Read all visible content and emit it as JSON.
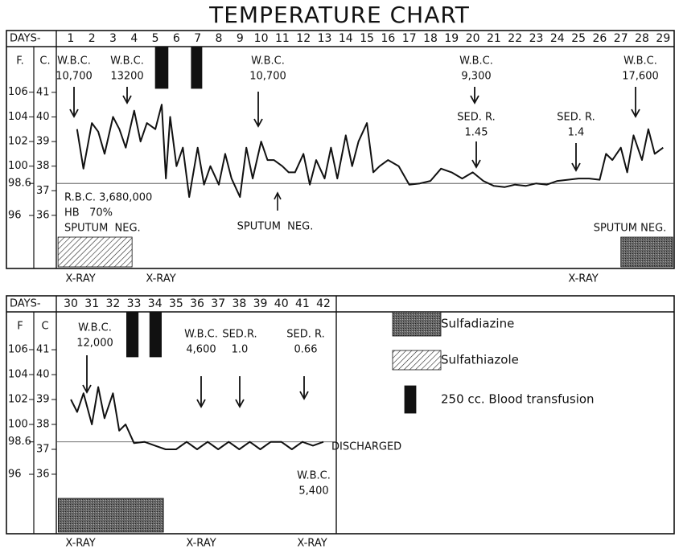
{
  "title": "TEMPERATURE CHART",
  "legend": [
    {
      "label": "Sulfadiazine",
      "pattern": "stipple"
    },
    {
      "label": "Sulfathiazole",
      "pattern": "hatch"
    },
    {
      "label": "250 cc. Blood transfusion",
      "pattern": "solid"
    }
  ],
  "chart_data": [
    {
      "type": "line",
      "x_label": "DAYS-",
      "y_label": "F.",
      "y2_label": "C.",
      "xlim": [
        0.32,
        29.52
      ],
      "xticks": [
        1,
        2,
        3,
        4,
        5,
        6,
        7,
        8,
        9,
        10,
        11,
        12,
        13,
        14,
        15,
        16,
        17,
        18,
        19,
        20,
        21,
        22,
        23,
        24,
        25,
        26,
        27,
        28,
        29
      ],
      "ylim": [
        91.7,
        109.7
      ],
      "yticks": [
        106,
        104,
        102,
        100,
        98.6,
        96
      ],
      "y2lim": [
        33.84,
        42.86
      ],
      "y2ticks": [
        41,
        40,
        39,
        38,
        37,
        36
      ],
      "series": [
        {
          "color": "#111111",
          "x": [
            1.3,
            1.6,
            2,
            2.3,
            2.6,
            3,
            3.3,
            3.6,
            4,
            4.3,
            4.6,
            5,
            5.3,
            5.5,
            5.7,
            6,
            6.3,
            6.6,
            7,
            7.3,
            7.6,
            8,
            8.3,
            8.6,
            9,
            9.3,
            9.6,
            10,
            10.3,
            10.6,
            11,
            11.3,
            11.6,
            12,
            12.3,
            12.6,
            13,
            13.3,
            13.6,
            14,
            14.3,
            14.6,
            15,
            15.3,
            15.6,
            16,
            16.5,
            17,
            17.5,
            18,
            18.5,
            19,
            19.5,
            20,
            20.5,
            21,
            21.5,
            22,
            22.5,
            23,
            23.5,
            24,
            24.5,
            25,
            25.5,
            26,
            26.3,
            26.6,
            27,
            27.3,
            27.6,
            28,
            28.3,
            28.6,
            29
          ],
          "values": [
            103,
            99.8,
            103.5,
            102.8,
            101,
            104,
            103,
            101.5,
            104.5,
            102,
            103.5,
            103,
            105,
            99,
            104,
            100,
            101.5,
            97.5,
            101.5,
            98.5,
            100,
            98.5,
            101,
            99,
            97.5,
            101.5,
            99,
            102,
            100.5,
            100.5,
            100,
            99.5,
            99.5,
            101,
            98.5,
            100.5,
            99,
            101.5,
            99,
            102.5,
            100,
            102,
            103.5,
            99.5,
            100,
            100.5,
            100,
            98.5,
            98.6,
            98.8,
            99.8,
            99.5,
            99,
            99.5,
            98.8,
            98.4,
            98.3,
            98.5,
            98.4,
            98.6,
            98.5,
            98.8,
            98.9,
            99,
            99,
            98.9,
            101,
            100.5,
            101.5,
            99.5,
            102.5,
            100.5,
            103,
            101,
            101.5
          ]
        }
      ],
      "treatments": [
        {
          "pattern": "hatch",
          "start": 0.4,
          "end": 3.9
        },
        {
          "pattern": "stipple",
          "start": 27,
          "end": 29.45
        },
        {
          "pattern": "solid",
          "start": 5,
          "end": 5.6
        },
        {
          "pattern": "solid",
          "start": 6.7,
          "end": 7.2
        }
      ],
      "annotations": [
        {
          "lines": [
            "W.B.C.",
            "10,700"
          ]
        },
        {
          "lines": [
            "W.B.C.",
            "13200"
          ]
        },
        {
          "lines": [
            "W.B.C.",
            "10,700"
          ]
        },
        {
          "lines": [
            "W.B.C.",
            "9,300"
          ]
        },
        {
          "lines": [
            "SED. R.",
            "1.45"
          ]
        },
        {
          "lines": [
            "SED. R.",
            "1.4"
          ]
        },
        {
          "lines": [
            "W.B.C.",
            "17,600"
          ]
        },
        {
          "lines": [
            "R.B.C. 3,680,000",
            "HB   70%",
            "SPUTUM  NEG."
          ]
        },
        {
          "lines": [
            "SPUTUM  NEG."
          ]
        },
        {
          "lines": [
            "SPUTUM NEG."
          ]
        }
      ],
      "x_ray_labels": [
        "X-RAY",
        "X-RAY",
        "X-RAY"
      ]
    },
    {
      "type": "line",
      "x_label": "DAYS-",
      "y_label": "F",
      "y2_label": "C",
      "xlim": [
        29.31,
        42.61
      ],
      "xticks": [
        30,
        31,
        32,
        33,
        34,
        35,
        36,
        37,
        38,
        39,
        40,
        41,
        42
      ],
      "ylim": [
        91.23,
        109.03
      ],
      "yticks": [
        106,
        104,
        102,
        100,
        98.6,
        96
      ],
      "y2lim": [
        33.61,
        42.52
      ],
      "y2ticks": [
        41,
        40,
        39,
        38,
        37,
        36
      ],
      "series": [
        {
          "color": "#111111",
          "x": [
            30,
            30.3,
            30.6,
            31,
            31.3,
            31.6,
            32,
            32.3,
            32.6,
            33,
            33.5,
            34,
            34.5,
            35,
            35.5,
            36,
            36.5,
            37,
            37.5,
            38,
            38.5,
            39,
            39.5,
            40,
            40.5,
            41,
            41.5,
            42
          ],
          "values": [
            102,
            101,
            102.5,
            100,
            103,
            100.5,
            102.5,
            99.5,
            100,
            98.5,
            98.6,
            98.3,
            98,
            98,
            98.6,
            98,
            98.6,
            98,
            98.6,
            98,
            98.6,
            98,
            98.6,
            98.6,
            98,
            98.6,
            98.3,
            98.6
          ]
        }
      ],
      "treatments": [
        {
          "pattern": "stipple",
          "start": 29.4,
          "end": 34.4
        },
        {
          "pattern": "solid",
          "start": 32.65,
          "end": 33.2
        },
        {
          "pattern": "solid",
          "start": 33.75,
          "end": 34.3
        }
      ],
      "annotations": [
        {
          "lines": [
            "W.B.C.",
            "12,000"
          ]
        },
        {
          "lines": [
            "W.B.C.",
            "4,600"
          ]
        },
        {
          "lines": [
            "SED.R.",
            "1.0"
          ]
        },
        {
          "lines": [
            "SED. R.",
            "0.66"
          ]
        },
        {
          "lines": [
            "DISCHARGED"
          ]
        },
        {
          "lines": [
            "W.B.C.",
            "5,400"
          ]
        }
      ],
      "x_ray_labels": [
        "X-RAY",
        "X-RAY",
        "X-RAY"
      ]
    }
  ]
}
